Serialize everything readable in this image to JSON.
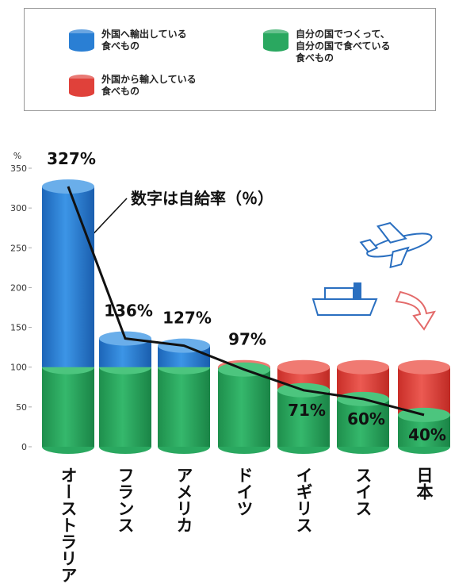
{
  "chart_data": {
    "type": "bar",
    "legend": [
      {
        "name": "外国へ輸出している\n食べもの",
        "color": "#2a7fd4"
      },
      {
        "name": "自分の国でつくって、\n自分の国で食べている\n食べもの",
        "color": "#2aa860"
      },
      {
        "name": "外国から輸入している\n食べもの",
        "color": "#e0413a"
      }
    ],
    "annotation": "数字は自給率（％）",
    "y_unit": "%",
    "categories": [
      "オーストラリア",
      "フランス",
      "アメリカ",
      "ドイツ",
      "イギリス",
      "スイス",
      "日本"
    ],
    "values": [
      327,
      136,
      127,
      97,
      71,
      60,
      40
    ],
    "value_labels": [
      "327%",
      "136%",
      "127%",
      "97%",
      "71%",
      "60%",
      "40%"
    ],
    "ylim": [
      0,
      350
    ],
    "yticks": [
      0,
      50,
      100,
      150,
      200,
      250,
      300,
      350
    ],
    "line_color": "#111111"
  }
}
